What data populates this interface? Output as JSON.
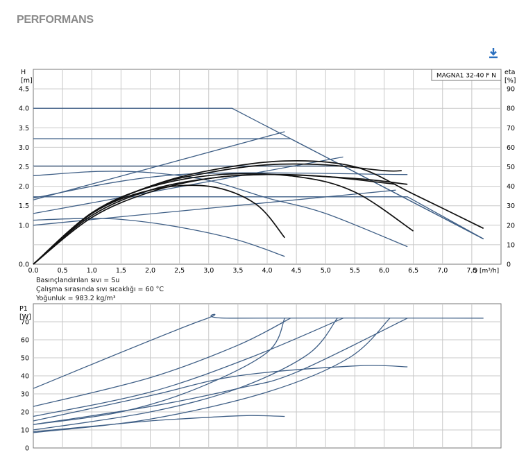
{
  "header": {
    "title": "PERFORMANS",
    "download_icon": "download-icon"
  },
  "colors": {
    "grid": "#c8c8c8",
    "curve": "#3f5f86",
    "black_curve": "#111111",
    "text": "#000000"
  },
  "fluid_info": [
    "Basınçlandırılan sıvı = Su",
    "Çalışma sırasında sıvı sıcaklığı = 60 °C",
    "Yoğunluk = 983.2 kg/m³"
  ],
  "chart_data": [
    {
      "type": "line",
      "legend_label": "MAGNA1 32-40 F N",
      "y_label_left": [
        "H",
        "[m]"
      ],
      "y_label_right": [
        "eta",
        "[%]"
      ],
      "x_label": "Q [m³/h]",
      "xlim": [
        0,
        8.0
      ],
      "ylim": [
        0,
        5.0
      ],
      "ylim_right": [
        0,
        100
      ],
      "x_ticks": [
        0.0,
        0.5,
        1.0,
        1.5,
        2.0,
        2.5,
        3.0,
        3.5,
        4.0,
        4.5,
        5.0,
        5.5,
        6.0,
        6.5,
        7.0,
        7.5
      ],
      "x_tick_labels": [
        "0.0",
        "0,5",
        "1,0",
        "1,5",
        "2,0",
        "2,5",
        "3,0",
        "3,5",
        "4,0",
        "4,5",
        "5,0",
        "5,5",
        "6,0",
        "6,5",
        "7,0",
        "7,5"
      ],
      "y_ticks": [
        0.0,
        0.5,
        1.0,
        1.5,
        2.0,
        2.5,
        3.0,
        3.5,
        4.0,
        4.5
      ],
      "y_tick_labels": [
        "0.0",
        "1.0",
        "1.5",
        "2.0",
        "2.5",
        "3.0",
        "3.5",
        "4.0",
        "4.5"
      ],
      "y_tick_labels_all": [
        "0.0",
        "",
        "1.0",
        "1.5",
        "2.0",
        "2.5",
        "3.0",
        "3.5",
        "4.0",
        "4.5"
      ],
      "y_right_ticks": [
        0,
        10,
        20,
        30,
        40,
        50,
        60,
        70,
        80,
        90
      ],
      "y_right_tick_labels": [
        "0",
        "10",
        "20",
        "30",
        "40",
        "50",
        "60",
        "70",
        "80",
        "90"
      ],
      "y_right_display_labels": [
        "0",
        "10",
        "20",
        "30",
        "40",
        "50",
        "60",
        "70",
        "80",
        "90"
      ],
      "series": [
        {
          "axis": "left",
          "color": "blue",
          "points": [
            [
              0,
              4.0
            ],
            [
              3.4,
              4.0
            ],
            [
              7.7,
              0.65
            ]
          ]
        },
        {
          "axis": "left",
          "color": "blue",
          "points": [
            [
              0,
              3.22
            ],
            [
              4.4,
              3.22
            ],
            [
              7.7,
              0.65
            ]
          ]
        },
        {
          "axis": "left",
          "color": "blue",
          "points": [
            [
              0,
              2.52
            ],
            [
              5.3,
              2.52
            ],
            [
              7.7,
              0.65
            ]
          ]
        },
        {
          "axis": "left",
          "color": "blue",
          "points": [
            [
              0,
              1.73
            ],
            [
              6.4,
              1.73
            ],
            [
              7.7,
              0.65
            ]
          ]
        },
        {
          "axis": "left",
          "color": "blue",
          "points": [
            [
              0,
              2.27
            ],
            [
              1.1,
              2.38
            ],
            [
              2.0,
              2.35
            ],
            [
              3.0,
              2.15
            ],
            [
              4.0,
              1.7
            ],
            [
              5.0,
              1.3
            ],
            [
              6.4,
              0.45
            ]
          ]
        },
        {
          "axis": "left",
          "color": "blue",
          "points": [
            [
              0,
              1.13
            ],
            [
              0.8,
              1.17
            ],
            [
              1.5,
              1.15
            ],
            [
              2.5,
              0.95
            ],
            [
              3.5,
              0.62
            ],
            [
              4.3,
              0.2
            ]
          ]
        },
        {
          "axis": "right",
          "color": "blue",
          "points": [
            [
              0,
              33
            ],
            [
              4.3,
              68
            ]
          ]
        },
        {
          "axis": "right",
          "color": "blue",
          "points": [
            [
              0,
              26
            ],
            [
              5.3,
              55
            ]
          ]
        },
        {
          "axis": "right",
          "color": "blue",
          "points": [
            [
              0,
              20
            ],
            [
              6.2,
              38
            ]
          ]
        },
        {
          "axis": "right",
          "color": "blue",
          "points": [
            [
              0,
              34
            ],
            [
              2.5,
              46
            ],
            [
              6.4,
              46
            ]
          ]
        },
        {
          "axis": "left",
          "color": "black",
          "points": [
            [
              0,
              0
            ],
            [
              1.0,
              1.3
            ],
            [
              2.0,
              2.0
            ],
            [
              3.0,
              2.4
            ],
            [
              4.3,
              2.65
            ],
            [
              5.5,
              2.5
            ],
            [
              6.5,
              1.8
            ],
            [
              7.7,
              0.92
            ]
          ]
        },
        {
          "axis": "left",
          "color": "black",
          "points": [
            [
              0,
              0
            ],
            [
              1.0,
              1.32
            ],
            [
              2.0,
              1.98
            ],
            [
              3.2,
              2.3
            ],
            [
              4.5,
              2.25
            ],
            [
              5.5,
              1.85
            ],
            [
              6.5,
              0.85
            ]
          ]
        },
        {
          "axis": "left",
          "color": "black",
          "points": [
            [
              0,
              0
            ],
            [
              1.0,
              1.3
            ],
            [
              2.0,
              1.9
            ],
            [
              3.0,
              2.0
            ],
            [
              3.8,
              1.55
            ],
            [
              4.3,
              0.68
            ]
          ]
        },
        {
          "axis": "right",
          "color": "black",
          "points": [
            [
              0,
              0
            ],
            [
              1.0,
              26
            ],
            [
              2.0,
              40
            ],
            [
              3.0,
              47
            ],
            [
              4.0,
              51
            ],
            [
              5.0,
              51
            ],
            [
              6.0,
              48
            ],
            [
              6.3,
              48
            ]
          ]
        },
        {
          "axis": "right",
          "color": "black",
          "points": [
            [
              0,
              0
            ],
            [
              1.0,
              25
            ],
            [
              2.0,
              38
            ],
            [
              3.0,
              44
            ],
            [
              4.0,
              46
            ],
            [
              5.5,
              44
            ],
            [
              6.4,
              41
            ]
          ]
        },
        {
          "axis": "right",
          "color": "black",
          "points": [
            [
              0,
              0
            ],
            [
              1.0,
              24
            ],
            [
              2.0,
              37
            ],
            [
              3.0,
              44
            ],
            [
              4.0,
              46
            ],
            [
              5.0,
              45
            ],
            [
              6.2,
              41
            ]
          ]
        }
      ]
    },
    {
      "type": "line",
      "y_label_left": [
        "P1",
        "[W]"
      ],
      "xlim": [
        0,
        8.0
      ],
      "ylim": [
        0,
        80
      ],
      "y_ticks": [
        0,
        10,
        20,
        30,
        40,
        50,
        60,
        70
      ],
      "y_tick_labels": [
        "0",
        "10",
        "20",
        "30",
        "40",
        "50",
        "60",
        "70"
      ],
      "series": [
        {
          "color": "blue",
          "points": [
            [
              0,
              33
            ],
            [
              2.9,
              71
            ],
            [
              3.4,
              72
            ],
            [
              7.7,
              72
            ]
          ]
        },
        {
          "color": "blue",
          "points": [
            [
              0,
              23
            ],
            [
              2.0,
              39
            ],
            [
              3.5,
              57
            ],
            [
              4.4,
              72
            ]
          ]
        },
        {
          "color": "blue",
          "points": [
            [
              0,
              17.5
            ],
            [
              2.0,
              31
            ],
            [
              3.7,
              50
            ],
            [
              5.3,
              72
            ]
          ]
        },
        {
          "color": "blue",
          "points": [
            [
              0,
              13
            ],
            [
              2.0,
              23
            ],
            [
              3.5,
              33
            ],
            [
              4.5,
              42
            ],
            [
              6.4,
              72
            ]
          ]
        },
        {
          "color": "blue",
          "points": [
            [
              0,
              9
            ],
            [
              1.0,
              12
            ],
            [
              2.0,
              15
            ],
            [
              3.0,
              17
            ],
            [
              3.7,
              18
            ],
            [
              4.3,
              17.5
            ]
          ]
        },
        {
          "color": "blue",
          "points": [
            [
              0,
              15
            ],
            [
              2.0,
              29
            ],
            [
              3.5,
              40
            ],
            [
              5.5,
              45.5
            ],
            [
              6.4,
              45
            ]
          ]
        },
        {
          "color": "blue",
          "points": [
            [
              0,
              13
            ],
            [
              1.5,
              20
            ],
            [
              2.8,
              33
            ],
            [
              4.0,
              53
            ],
            [
              4.3,
              72
            ]
          ]
        },
        {
          "color": "blue",
          "points": [
            [
              0,
              10
            ],
            [
              2.0,
              20
            ],
            [
              3.5,
              33
            ],
            [
              4.7,
              52
            ],
            [
              5.2,
              72
            ]
          ]
        },
        {
          "color": "blue",
          "points": [
            [
              0,
              8.5
            ],
            [
              2.0,
              16
            ],
            [
              4.0,
              31
            ],
            [
              5.4,
              50
            ],
            [
              6.1,
              72
            ]
          ]
        }
      ]
    }
  ]
}
